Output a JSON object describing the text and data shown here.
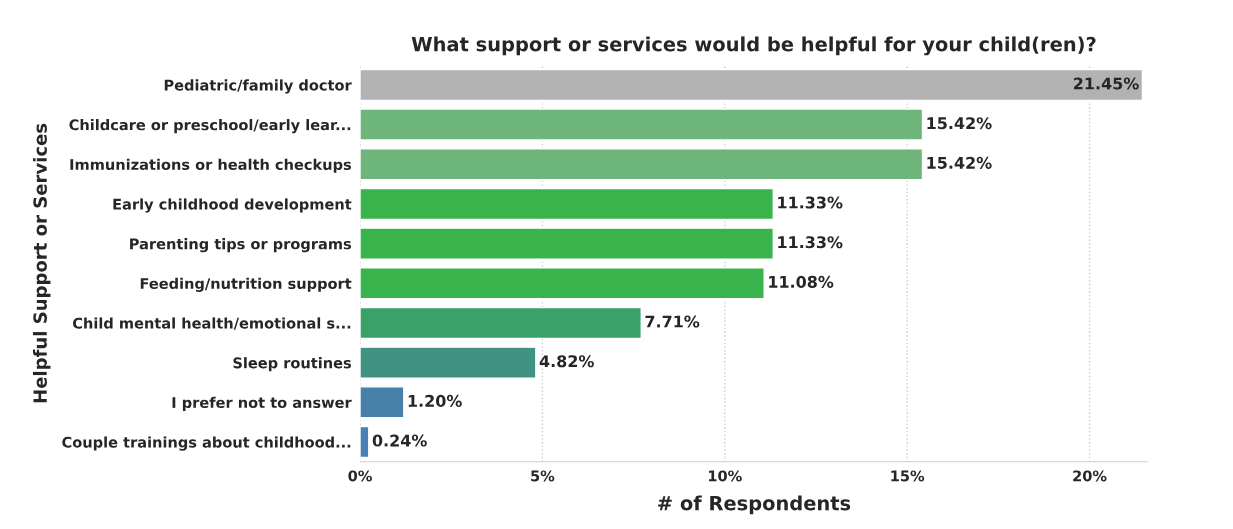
{
  "chart_data": {
    "type": "bar",
    "orientation": "horizontal",
    "title": "What support or services would be helpful for your child(ren)?",
    "xlabel": "# of Respondents",
    "ylabel": "Helpful Support or Services",
    "categories": [
      "Pediatric/family doctor",
      "Childcare or preschool/early lear...",
      "Immunizations or health checkups",
      "Early childhood development",
      "Parenting tips or programs",
      "Feeding/nutrition support",
      "Child mental health/emotional s...",
      "Sleep routines",
      "I prefer not to answer",
      "Couple trainings about childhood..."
    ],
    "values": [
      21.45,
      15.42,
      15.42,
      11.33,
      11.33,
      11.08,
      7.71,
      4.82,
      1.2,
      0.24
    ],
    "value_labels": [
      "21.45%",
      "15.42%",
      "15.42%",
      "11.33%",
      "11.33%",
      "11.08%",
      "7.71%",
      "4.82%",
      "1.20%",
      "0.24%"
    ],
    "colors": [
      "#b2b2b2",
      "#6db57a",
      "#6db57a",
      "#39b44c",
      "#39b44c",
      "#39b44c",
      "#3aa168",
      "#409282",
      "#467fa7",
      "#4a7fb8"
    ],
    "xlim": [
      0,
      21.6
    ],
    "xticks": [
      {
        "value": 0,
        "label": "0%"
      },
      {
        "value": 5,
        "label": "5%"
      },
      {
        "value": 10,
        "label": "10%"
      },
      {
        "value": 15,
        "label": "15%"
      },
      {
        "value": 20,
        "label": "20%"
      }
    ],
    "grid": "x",
    "legend": false
  }
}
